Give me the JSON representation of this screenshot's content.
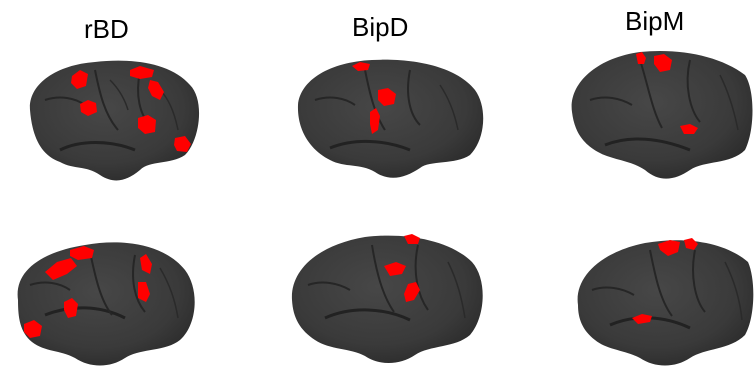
{
  "figure": {
    "columns": [
      {
        "label": "rBD"
      },
      {
        "label": "BipD"
      },
      {
        "label": "BipM"
      }
    ]
  },
  "colors": {
    "background": "#ffffff",
    "cortex": "#3a3a3a",
    "cortex_shadow": "#2a2a2a",
    "sulcus": "#232323",
    "activation": "#ff0000"
  }
}
